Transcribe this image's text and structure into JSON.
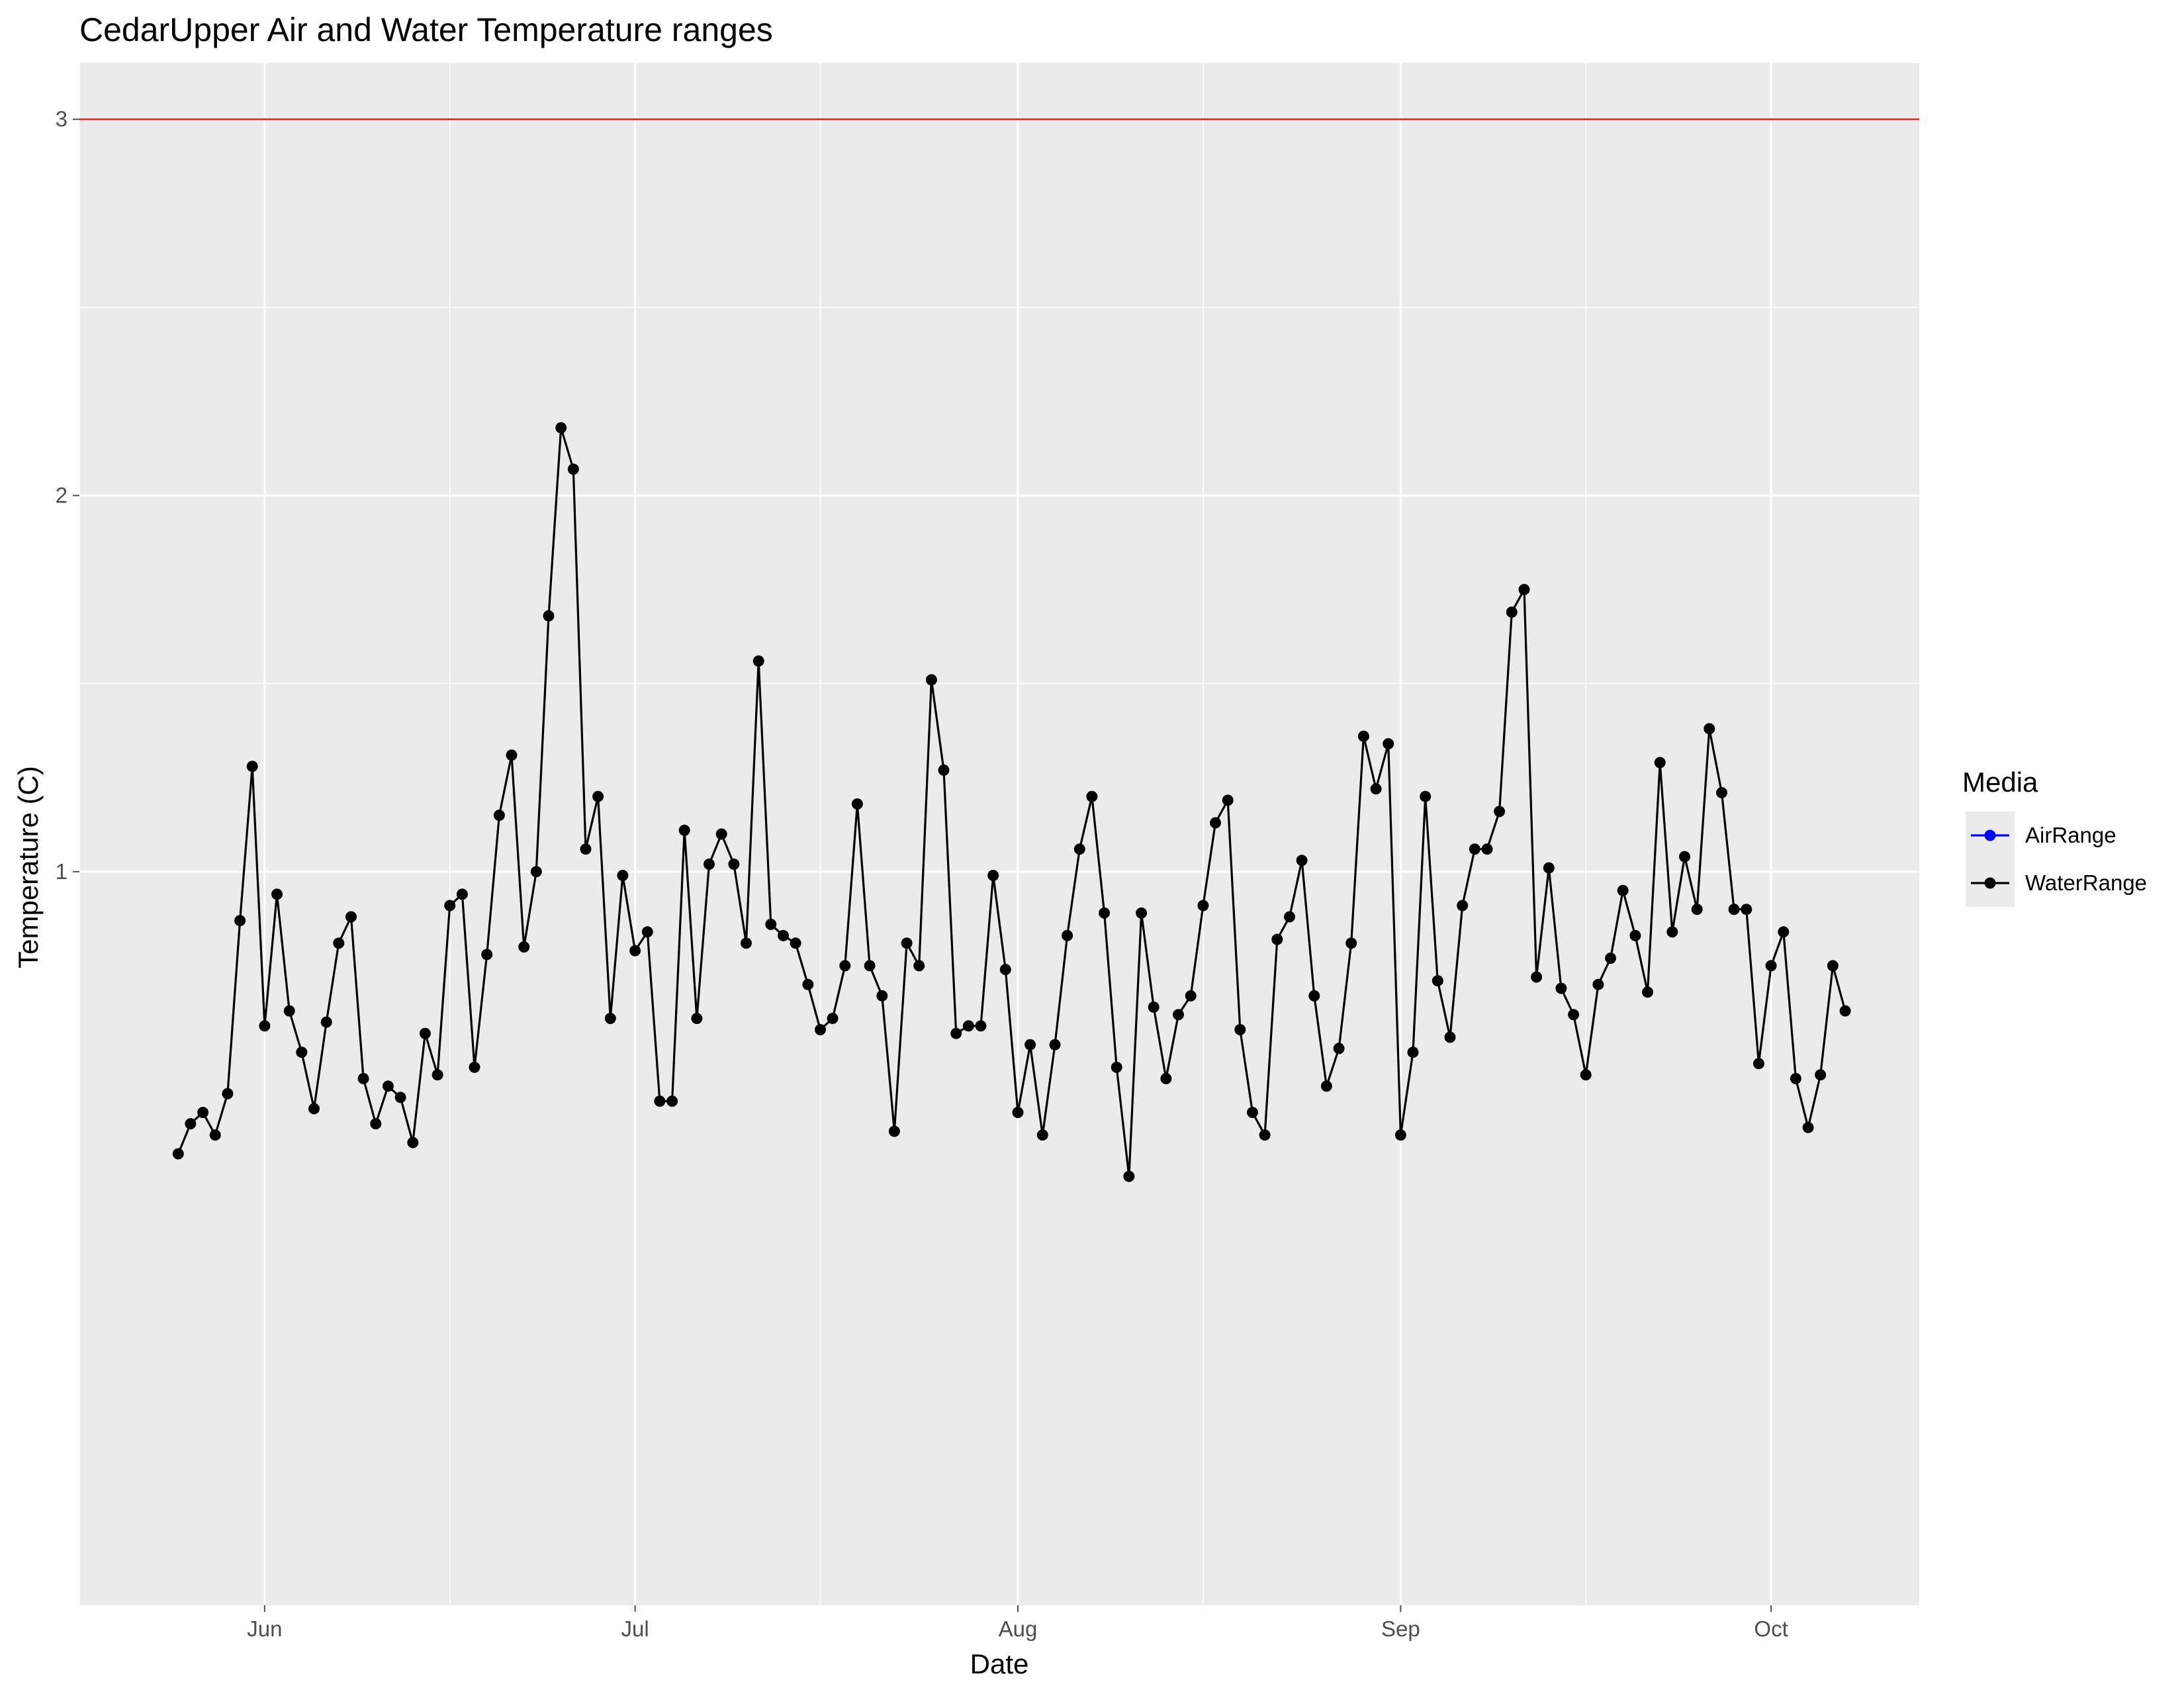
{
  "colors": {
    "panel_bg": "#EBEBEB",
    "grid": "#FFFFFF",
    "tick": "#4D4D4D",
    "threshold_line": "#FF0000",
    "air_series": "#0000FF",
    "water_series": "#000000"
  },
  "chart_data": {
    "type": "line",
    "title": "CedarUpper Air and Water Temperature ranges",
    "xlabel": "Date",
    "ylabel": "Temperature (C)",
    "x_type": "date",
    "xlim": [
      "2022-05-17",
      "2022-10-13"
    ],
    "ylim": [
      -0.95,
      3.15
    ],
    "x_ticks": [
      {
        "label": "Jun",
        "date": "2022-06-01"
      },
      {
        "label": "Jul",
        "date": "2022-07-01"
      },
      {
        "label": "Aug",
        "date": "2022-08-01"
      },
      {
        "label": "Sep",
        "date": "2022-09-01"
      },
      {
        "label": "Oct",
        "date": "2022-10-01"
      }
    ],
    "x_minor_dates": [
      "2022-05-17",
      "2022-06-16",
      "2022-07-16",
      "2022-08-16",
      "2022-09-16"
    ],
    "y_ticks": [
      1,
      2,
      3
    ],
    "y_minor": [
      1.5,
      2.5
    ],
    "grid": true,
    "reference_line": {
      "y": 3,
      "color": "#FF0000"
    },
    "legend": {
      "title": "Media",
      "position": "right",
      "entries": [
        {
          "label": "AirRange",
          "color": "#0000FF"
        },
        {
          "label": "WaterRange",
          "color": "#000000"
        }
      ]
    },
    "series": [
      {
        "name": "WaterRange",
        "color": "#000000",
        "start_date": "2022-05-25",
        "values": [
          0.25,
          0.33,
          0.36,
          0.3,
          0.41,
          0.87,
          1.28,
          0.59,
          0.94,
          0.63,
          0.52,
          0.37,
          0.6,
          0.81,
          0.88,
          0.45,
          0.33,
          0.43,
          0.4,
          0.28,
          0.57,
          0.46,
          0.91,
          0.94,
          0.48,
          0.78,
          1.15,
          1.31,
          0.8,
          1.0,
          1.68,
          2.18,
          2.07,
          1.06,
          1.2,
          0.61,
          0.99,
          0.79,
          0.84,
          0.39,
          0.39,
          1.11,
          0.61,
          1.02,
          1.1,
          1.02,
          0.81,
          1.56,
          0.86,
          0.83,
          0.81,
          0.7,
          0.58,
          0.61,
          0.75,
          1.18,
          0.75,
          0.67,
          0.31,
          0.81,
          0.75,
          1.51,
          1.27,
          0.57,
          0.59,
          0.59,
          0.99,
          0.74,
          0.36,
          0.54,
          0.3,
          0.54,
          0.83,
          1.06,
          1.2,
          0.89,
          0.48,
          0.19,
          0.89,
          0.64,
          0.45,
          0.62,
          0.67,
          0.91,
          1.13,
          1.19,
          0.58,
          0.36,
          0.3,
          0.82,
          0.88,
          1.03,
          0.67,
          0.43,
          0.53,
          0.81,
          1.36,
          1.22,
          1.34,
          0.3,
          0.52,
          1.2,
          0.71,
          0.56,
          0.91,
          1.06,
          1.06,
          1.16,
          1.69,
          1.75,
          0.72,
          1.01,
          0.69,
          0.62,
          0.46,
          0.7,
          0.77,
          0.95,
          0.83,
          0.68,
          1.29,
          0.84,
          1.04,
          0.9,
          1.38,
          1.21,
          0.9,
          0.9,
          0.49,
          0.75,
          0.84,
          0.45,
          0.32,
          0.46,
          0.75,
          0.63
        ]
      }
    ]
  }
}
